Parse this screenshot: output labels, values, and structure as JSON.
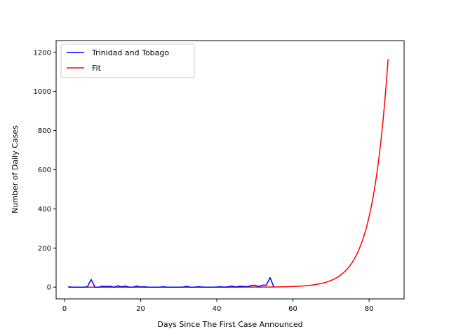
{
  "chart_data": {
    "type": "line",
    "title": "",
    "xlabel": "Days Since The First Case Announced",
    "ylabel": "Number of Daily Cases",
    "xlim": [
      -2.2,
      89.2
    ],
    "ylim": [
      -60,
      1260
    ],
    "x_ticks": [
      0,
      20,
      40,
      60,
      80
    ],
    "y_ticks": [
      0,
      200,
      400,
      600,
      800,
      1000,
      1200
    ],
    "grid": false,
    "legend_position": "upper-left",
    "series": [
      {
        "name": "Trinidad and Tobago",
        "color": "#0000ff",
        "x": [
          1,
          2,
          3,
          4,
          5,
          6,
          7,
          8,
          9,
          10,
          11,
          12,
          13,
          14,
          15,
          16,
          17,
          18,
          19,
          20,
          21,
          22,
          23,
          24,
          25,
          26,
          27,
          28,
          29,
          30,
          31,
          32,
          33,
          34,
          35,
          36,
          37,
          38,
          39,
          40,
          41,
          42,
          43,
          44,
          45,
          46,
          47,
          48,
          49,
          50,
          51,
          52,
          53,
          54,
          55
        ],
        "y": [
          2,
          0,
          0,
          0,
          0,
          2,
          39,
          0,
          0,
          5,
          3,
          5,
          0,
          7,
          2,
          6,
          0,
          0,
          6,
          1,
          2,
          0,
          0,
          0,
          0,
          2,
          0,
          0,
          0,
          0,
          0,
          4,
          0,
          0,
          2,
          1,
          0,
          0,
          0,
          1,
          2,
          0,
          2,
          6,
          1,
          5,
          4,
          2,
          8,
          10,
          3,
          10,
          10,
          49,
          0
        ]
      },
      {
        "name": "Fit",
        "color": "#ff0000",
        "function": "y = 0.0000024 * exp(0.2353 * x)",
        "x_range": [
          1,
          85
        ]
      }
    ]
  }
}
